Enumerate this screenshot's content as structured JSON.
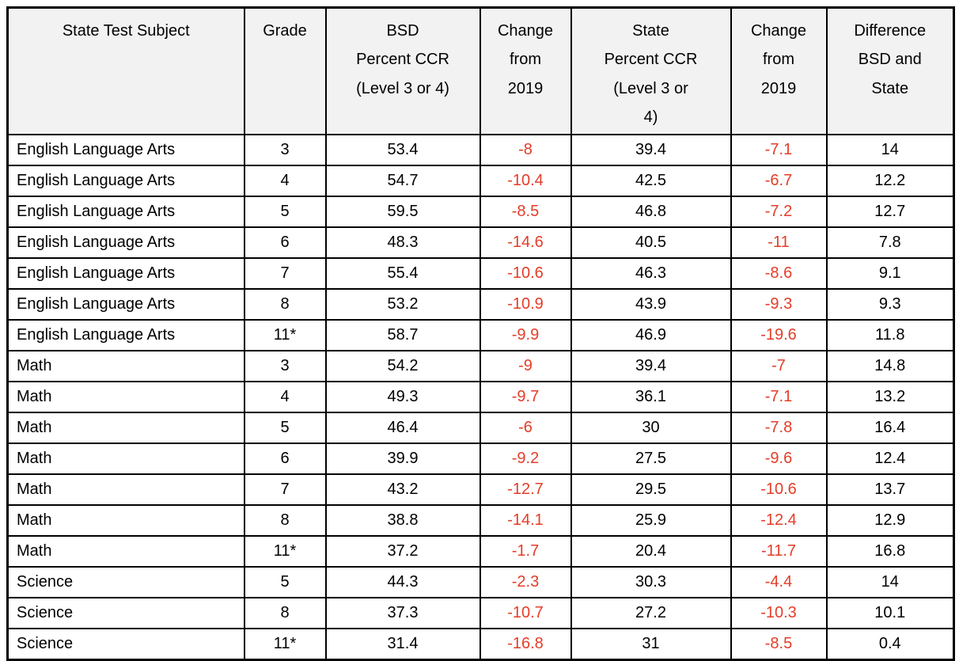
{
  "colors": {
    "negative_value": "#e43d28",
    "header_background": "#f2f2f2",
    "border": "#000000",
    "text": "#000000"
  },
  "table": {
    "headers": [
      "State Test Subject",
      "Grade",
      "BSD\nPercent CCR\n(Level 3 or 4)",
      "Change\nfrom\n2019",
      "State\nPercent CCR\n(Level 3 or\n4)",
      "Change\nfrom\n2019",
      "Difference\nBSD and\nState"
    ],
    "rows": [
      [
        "English Language Arts",
        "3",
        "53.4",
        "-8",
        "39.4",
        "-7.1",
        "14"
      ],
      [
        "English Language Arts",
        "4",
        "54.7",
        "-10.4",
        "42.5",
        "-6.7",
        "12.2"
      ],
      [
        "English Language Arts",
        "5",
        "59.5",
        "-8.5",
        "46.8",
        "-7.2",
        "12.7"
      ],
      [
        "English Language Arts",
        "6",
        "48.3",
        "-14.6",
        "40.5",
        "-11",
        "7.8"
      ],
      [
        "English Language Arts",
        "7",
        "55.4",
        "-10.6",
        "46.3",
        "-8.6",
        "9.1"
      ],
      [
        "English Language Arts",
        "8",
        "53.2",
        "-10.9",
        "43.9",
        "-9.3",
        "9.3"
      ],
      [
        "English Language Arts",
        "11*",
        "58.7",
        "-9.9",
        "46.9",
        "-19.6",
        "11.8"
      ],
      [
        "Math",
        "3",
        "54.2",
        "-9",
        "39.4",
        "-7",
        "14.8"
      ],
      [
        "Math",
        "4",
        "49.3",
        "-9.7",
        "36.1",
        "-7.1",
        "13.2"
      ],
      [
        "Math",
        "5",
        "46.4",
        "-6",
        "30",
        "-7.8",
        "16.4"
      ],
      [
        "Math",
        "6",
        "39.9",
        "-9.2",
        "27.5",
        "-9.6",
        "12.4"
      ],
      [
        "Math",
        "7",
        "43.2",
        "-12.7",
        "29.5",
        "-10.6",
        "13.7"
      ],
      [
        "Math",
        "8",
        "38.8",
        "-14.1",
        "25.9",
        "-12.4",
        "12.9"
      ],
      [
        "Math",
        "11*",
        "37.2",
        "-1.7",
        "20.4",
        "-11.7",
        "16.8"
      ],
      [
        "Science",
        "5",
        "44.3",
        "-2.3",
        "30.3",
        "-4.4",
        "14"
      ],
      [
        "Science",
        "8",
        "37.3",
        "-10.7",
        "27.2",
        "-10.3",
        "10.1"
      ],
      [
        "Science",
        "11*",
        "31.4",
        "-16.8",
        "31",
        "-8.5",
        "0.4"
      ]
    ]
  }
}
